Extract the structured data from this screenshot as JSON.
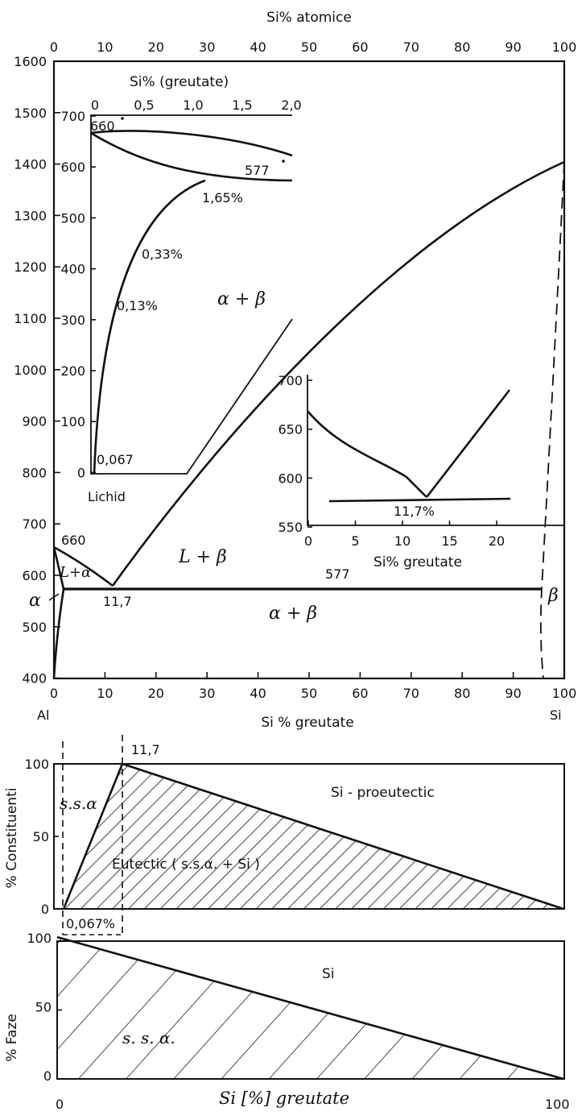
{
  "main_diagram": {
    "top_axis_title": "Si% atomice",
    "top_ticks": [
      "0",
      "10",
      "20",
      "30",
      "40",
      "50",
      "60",
      "70",
      "80",
      "90",
      "100"
    ],
    "bottom_axis_title": "Si % greutate",
    "bottom_ticks": [
      "0",
      "10",
      "20",
      "30",
      "40",
      "50",
      "60",
      "70",
      "80",
      "90",
      "100"
    ],
    "y_ticks": [
      "1600",
      "1500",
      "1400",
      "1300",
      "1200",
      "1100",
      "1000",
      "900",
      "800",
      "700",
      "600",
      "500",
      "400"
    ],
    "left_element": "Al",
    "right_element": "Si",
    "labels": {
      "al_melting": "660",
      "eutectic_comp": "11,7",
      "eutectic_temp": "577",
      "l_alpha": "L+α",
      "l_beta": "L + β",
      "alpha_beta": "α + β",
      "alpha": "α",
      "beta": "β"
    }
  },
  "inset_solvus": {
    "top_axis_title": "Si% (greutate)",
    "top_ticks": [
      "0",
      "0,5",
      "1,0",
      "1,5",
      "2,0"
    ],
    "y_ticks": [
      "700",
      "600",
      "500",
      "400",
      "300",
      "200",
      "100",
      "0"
    ],
    "labels": {
      "melting": "660",
      "eutectic": "577",
      "max_solubility": "1,65%",
      "sol_033": "0,33%",
      "sol_013": "0,13%",
      "sol_0067": "0,067",
      "region": "α + β",
      "lichid": "Lichid"
    }
  },
  "inset_eutectic": {
    "y_ticks": [
      "700",
      "650",
      "600",
      "550"
    ],
    "x_ticks": [
      "0",
      "5",
      "10",
      "15",
      "20"
    ],
    "x_axis_title": "Si% greutate",
    "labels": {
      "eutectic": "11,7%"
    }
  },
  "constituents_diagram": {
    "y_axis_title": "% Constituenti",
    "y_ticks": [
      "100",
      "50",
      "0"
    ],
    "top_marker": "11,7",
    "bottom_marker": "0,067%",
    "labels": {
      "solid_solution": "s.s.α",
      "proeutectic": "Si - proeutectic",
      "eutectic": "Eutectic ( s.s.α. + Si )"
    }
  },
  "phases_diagram": {
    "y_axis_title": "% Faze",
    "y_ticks": [
      "100",
      "50",
      "0"
    ],
    "x_left": "0",
    "x_right": "100",
    "x_axis_title": "Si [%] greutate",
    "labels": {
      "si": "Si",
      "solid_solution": "s. s. α."
    }
  }
}
